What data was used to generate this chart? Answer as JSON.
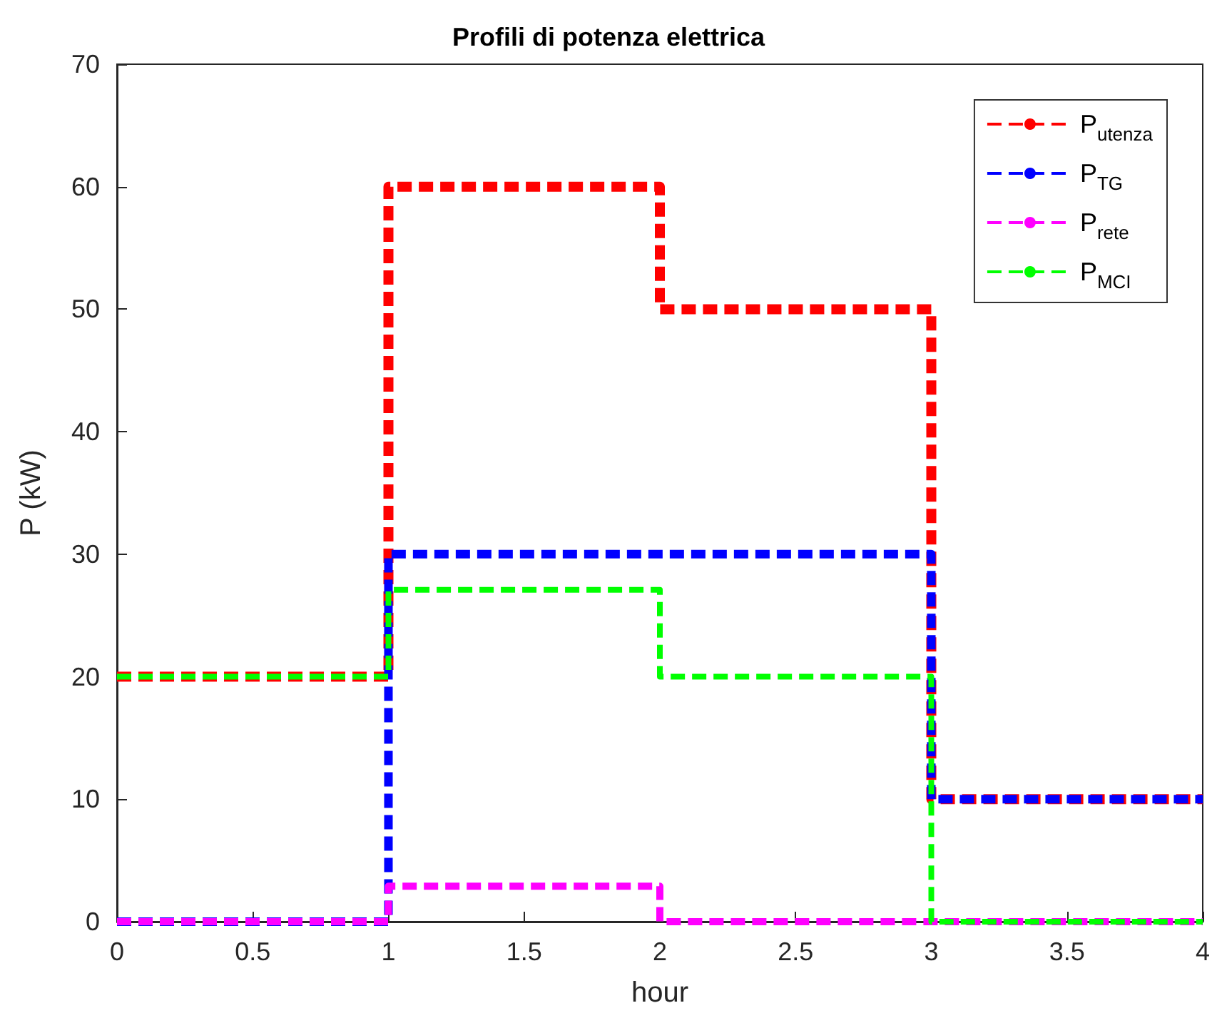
{
  "chart_data": {
    "type": "step",
    "title": "Profili di potenza elettrica",
    "xlabel": "hour",
    "ylabel": "P (kW)",
    "x": [
      0,
      1,
      2,
      3,
      4
    ],
    "series": [
      {
        "name": "P$_{utenza}$",
        "color": "#ff0000",
        "values": [
          20,
          60,
          50,
          10,
          10
        ],
        "line_style": "dashed"
      },
      {
        "name": "P$_{TG}$",
        "color": "#0000ff",
        "values": [
          0,
          30,
          30,
          10,
          10
        ],
        "line_style": "dashed"
      },
      {
        "name": "P$_{rete}$",
        "color": "#ff00ff",
        "values": [
          0,
          2.9,
          0,
          0,
          0
        ],
        "line_style": "dashed"
      },
      {
        "name": "P$_{MCI}$",
        "color": "#00ff00",
        "values": [
          20,
          27.1,
          20,
          0,
          0
        ],
        "line_style": "dashed"
      }
    ],
    "xlim": [
      0,
      4
    ],
    "xticks": [
      0,
      0.5,
      1,
      1.5,
      2,
      2.5,
      3,
      3.5,
      4
    ],
    "ylim": [
      0,
      70
    ],
    "yticks": [
      0,
      10,
      20,
      30,
      40,
      50,
      60,
      70
    ],
    "grid": false,
    "legend": "top right",
    "marker": "none"
  }
}
